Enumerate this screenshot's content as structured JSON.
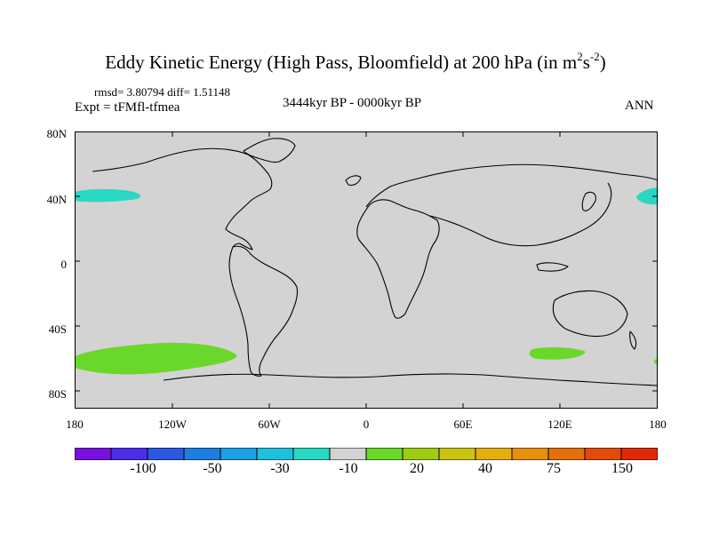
{
  "title": {
    "main": "Eddy Kinetic Energy (High Pass, Bloomfield) at 200 hPa (in m",
    "exp1": "2",
    "unit_mid": "s",
    "exp2": "-2",
    "close": ")"
  },
  "stats": "rmsd= 3.80794 diff= 1.51148",
  "expt": "Expt = tFMfl-tfmea",
  "period": "3444kyr BP - 0000kyr BP",
  "season": "ANN",
  "lat_labels": [
    "80N",
    "40N",
    "0",
    "40S",
    "80S"
  ],
  "lon_labels": [
    "180",
    "120W",
    "60W",
    "0",
    "60E",
    "120E",
    "180"
  ],
  "colorbar": {
    "labels": [
      "-100",
      "-50",
      "-30",
      "-10",
      "20",
      "40",
      "75",
      "150"
    ],
    "colors": [
      "#7a10e0",
      "#4a2ee6",
      "#2a58e0",
      "#1c7ee0",
      "#1aa0e4",
      "#20c0dc",
      "#28d8c4",
      "#d3d3d3",
      "#6ad82a",
      "#9ecc12",
      "#c8c410",
      "#e4ae0e",
      "#e6900c",
      "#e4700a",
      "#e24a08",
      "#e02a06"
    ]
  },
  "colors": {
    "land_ocean": "#d3d3d3",
    "positive_area": "#6ad82a",
    "negative_area": "#28d8c4"
  }
}
